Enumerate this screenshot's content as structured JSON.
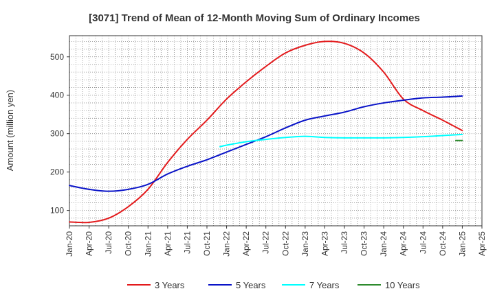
{
  "chart_data": {
    "type": "line",
    "title": "[3071]  Trend of Mean of 12-Month Moving Sum of Ordinary Incomes",
    "xlabel": "",
    "ylabel": "Amount (million yen)",
    "ylim": [
      60,
      555
    ],
    "yticks": [
      100,
      200,
      300,
      400,
      500
    ],
    "xticks": [
      "Jan-20",
      "Apr-20",
      "Jul-20",
      "Oct-20",
      "Jan-21",
      "Apr-21",
      "Jul-21",
      "Oct-21",
      "Jan-22",
      "Apr-22",
      "Jul-22",
      "Oct-22",
      "Jan-23",
      "Apr-23",
      "Jul-23",
      "Oct-23",
      "Jan-24",
      "Apr-24",
      "Jul-24",
      "Oct-24",
      "Jan-25",
      "Apr-25"
    ],
    "grid": true,
    "legend_position": "bottom",
    "series": [
      {
        "name": "3 Years",
        "color": "#e31a1c",
        "x_index": [
          0,
          1,
          2,
          3,
          4,
          5,
          6,
          7,
          8,
          9,
          10,
          11,
          12,
          13,
          14,
          15,
          16,
          17,
          18,
          19,
          20
        ],
        "values": [
          70,
          69,
          80,
          110,
          155,
          225,
          285,
          335,
          390,
          435,
          475,
          510,
          530,
          540,
          535,
          510,
          460,
          390,
          360,
          335,
          308
        ]
      },
      {
        "name": "5 Years",
        "color": "#0a14c8",
        "x_index": [
          0,
          1,
          2,
          3,
          4,
          5,
          6,
          7,
          8,
          9,
          10,
          11,
          12,
          13,
          14,
          15,
          16,
          17,
          18,
          19,
          20
        ],
        "values": [
          165,
          155,
          150,
          155,
          168,
          195,
          215,
          232,
          252,
          272,
          292,
          315,
          335,
          346,
          356,
          370,
          380,
          387,
          393,
          395,
          398
        ]
      },
      {
        "name": "7 Years",
        "color": "#00ffff",
        "x_index": [
          7.67,
          8,
          9,
          10,
          11,
          12,
          13,
          14,
          15,
          16,
          17,
          18,
          19,
          20
        ],
        "values": [
          266,
          270,
          279,
          285,
          290,
          293,
          290,
          289,
          289,
          289,
          290,
          292,
          295,
          298
        ]
      },
      {
        "name": "10 Years",
        "color": "#2e8b2e",
        "x_index": [
          19.67,
          20
        ],
        "values": [
          282,
          282
        ]
      }
    ]
  }
}
